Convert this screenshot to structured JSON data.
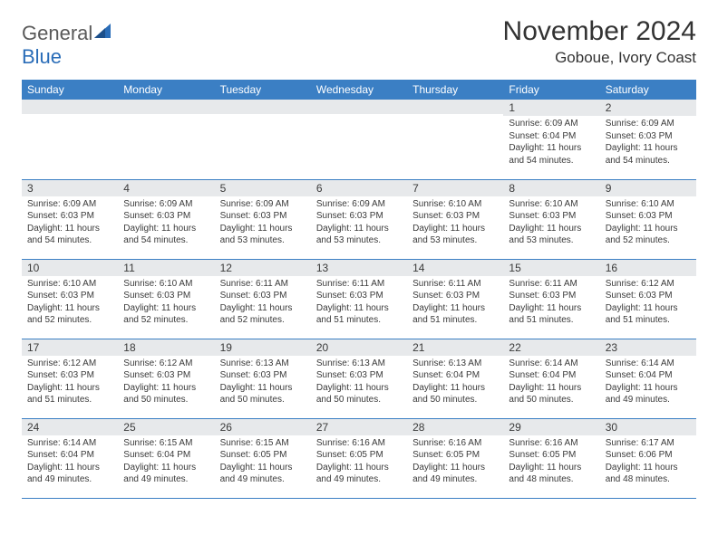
{
  "logo": {
    "text1": "General",
    "text2": "Blue"
  },
  "title": "November 2024",
  "location": "Goboue, Ivory Coast",
  "colors": {
    "header_bg": "#3b7fc4",
    "header_text": "#ffffff",
    "daynum_bg": "#e7e9eb",
    "border": "#3b7fc4",
    "text": "#3a3a3a",
    "logo_gray": "#5a5a5a",
    "logo_blue": "#2a6db8"
  },
  "weekdays": [
    "Sunday",
    "Monday",
    "Tuesday",
    "Wednesday",
    "Thursday",
    "Friday",
    "Saturday"
  ],
  "weeks": [
    [
      {
        "day": "",
        "sunrise": "",
        "sunset": "",
        "daylight": ""
      },
      {
        "day": "",
        "sunrise": "",
        "sunset": "",
        "daylight": ""
      },
      {
        "day": "",
        "sunrise": "",
        "sunset": "",
        "daylight": ""
      },
      {
        "day": "",
        "sunrise": "",
        "sunset": "",
        "daylight": ""
      },
      {
        "day": "",
        "sunrise": "",
        "sunset": "",
        "daylight": ""
      },
      {
        "day": "1",
        "sunrise": "Sunrise: 6:09 AM",
        "sunset": "Sunset: 6:04 PM",
        "daylight": "Daylight: 11 hours and 54 minutes."
      },
      {
        "day": "2",
        "sunrise": "Sunrise: 6:09 AM",
        "sunset": "Sunset: 6:03 PM",
        "daylight": "Daylight: 11 hours and 54 minutes."
      }
    ],
    [
      {
        "day": "3",
        "sunrise": "Sunrise: 6:09 AM",
        "sunset": "Sunset: 6:03 PM",
        "daylight": "Daylight: 11 hours and 54 minutes."
      },
      {
        "day": "4",
        "sunrise": "Sunrise: 6:09 AM",
        "sunset": "Sunset: 6:03 PM",
        "daylight": "Daylight: 11 hours and 54 minutes."
      },
      {
        "day": "5",
        "sunrise": "Sunrise: 6:09 AM",
        "sunset": "Sunset: 6:03 PM",
        "daylight": "Daylight: 11 hours and 53 minutes."
      },
      {
        "day": "6",
        "sunrise": "Sunrise: 6:09 AM",
        "sunset": "Sunset: 6:03 PM",
        "daylight": "Daylight: 11 hours and 53 minutes."
      },
      {
        "day": "7",
        "sunrise": "Sunrise: 6:10 AM",
        "sunset": "Sunset: 6:03 PM",
        "daylight": "Daylight: 11 hours and 53 minutes."
      },
      {
        "day": "8",
        "sunrise": "Sunrise: 6:10 AM",
        "sunset": "Sunset: 6:03 PM",
        "daylight": "Daylight: 11 hours and 53 minutes."
      },
      {
        "day": "9",
        "sunrise": "Sunrise: 6:10 AM",
        "sunset": "Sunset: 6:03 PM",
        "daylight": "Daylight: 11 hours and 52 minutes."
      }
    ],
    [
      {
        "day": "10",
        "sunrise": "Sunrise: 6:10 AM",
        "sunset": "Sunset: 6:03 PM",
        "daylight": "Daylight: 11 hours and 52 minutes."
      },
      {
        "day": "11",
        "sunrise": "Sunrise: 6:10 AM",
        "sunset": "Sunset: 6:03 PM",
        "daylight": "Daylight: 11 hours and 52 minutes."
      },
      {
        "day": "12",
        "sunrise": "Sunrise: 6:11 AM",
        "sunset": "Sunset: 6:03 PM",
        "daylight": "Daylight: 11 hours and 52 minutes."
      },
      {
        "day": "13",
        "sunrise": "Sunrise: 6:11 AM",
        "sunset": "Sunset: 6:03 PM",
        "daylight": "Daylight: 11 hours and 51 minutes."
      },
      {
        "day": "14",
        "sunrise": "Sunrise: 6:11 AM",
        "sunset": "Sunset: 6:03 PM",
        "daylight": "Daylight: 11 hours and 51 minutes."
      },
      {
        "day": "15",
        "sunrise": "Sunrise: 6:11 AM",
        "sunset": "Sunset: 6:03 PM",
        "daylight": "Daylight: 11 hours and 51 minutes."
      },
      {
        "day": "16",
        "sunrise": "Sunrise: 6:12 AM",
        "sunset": "Sunset: 6:03 PM",
        "daylight": "Daylight: 11 hours and 51 minutes."
      }
    ],
    [
      {
        "day": "17",
        "sunrise": "Sunrise: 6:12 AM",
        "sunset": "Sunset: 6:03 PM",
        "daylight": "Daylight: 11 hours and 51 minutes."
      },
      {
        "day": "18",
        "sunrise": "Sunrise: 6:12 AM",
        "sunset": "Sunset: 6:03 PM",
        "daylight": "Daylight: 11 hours and 50 minutes."
      },
      {
        "day": "19",
        "sunrise": "Sunrise: 6:13 AM",
        "sunset": "Sunset: 6:03 PM",
        "daylight": "Daylight: 11 hours and 50 minutes."
      },
      {
        "day": "20",
        "sunrise": "Sunrise: 6:13 AM",
        "sunset": "Sunset: 6:03 PM",
        "daylight": "Daylight: 11 hours and 50 minutes."
      },
      {
        "day": "21",
        "sunrise": "Sunrise: 6:13 AM",
        "sunset": "Sunset: 6:04 PM",
        "daylight": "Daylight: 11 hours and 50 minutes."
      },
      {
        "day": "22",
        "sunrise": "Sunrise: 6:14 AM",
        "sunset": "Sunset: 6:04 PM",
        "daylight": "Daylight: 11 hours and 50 minutes."
      },
      {
        "day": "23",
        "sunrise": "Sunrise: 6:14 AM",
        "sunset": "Sunset: 6:04 PM",
        "daylight": "Daylight: 11 hours and 49 minutes."
      }
    ],
    [
      {
        "day": "24",
        "sunrise": "Sunrise: 6:14 AM",
        "sunset": "Sunset: 6:04 PM",
        "daylight": "Daylight: 11 hours and 49 minutes."
      },
      {
        "day": "25",
        "sunrise": "Sunrise: 6:15 AM",
        "sunset": "Sunset: 6:04 PM",
        "daylight": "Daylight: 11 hours and 49 minutes."
      },
      {
        "day": "26",
        "sunrise": "Sunrise: 6:15 AM",
        "sunset": "Sunset: 6:05 PM",
        "daylight": "Daylight: 11 hours and 49 minutes."
      },
      {
        "day": "27",
        "sunrise": "Sunrise: 6:16 AM",
        "sunset": "Sunset: 6:05 PM",
        "daylight": "Daylight: 11 hours and 49 minutes."
      },
      {
        "day": "28",
        "sunrise": "Sunrise: 6:16 AM",
        "sunset": "Sunset: 6:05 PM",
        "daylight": "Daylight: 11 hours and 49 minutes."
      },
      {
        "day": "29",
        "sunrise": "Sunrise: 6:16 AM",
        "sunset": "Sunset: 6:05 PM",
        "daylight": "Daylight: 11 hours and 48 minutes."
      },
      {
        "day": "30",
        "sunrise": "Sunrise: 6:17 AM",
        "sunset": "Sunset: 6:06 PM",
        "daylight": "Daylight: 11 hours and 48 minutes."
      }
    ]
  ]
}
